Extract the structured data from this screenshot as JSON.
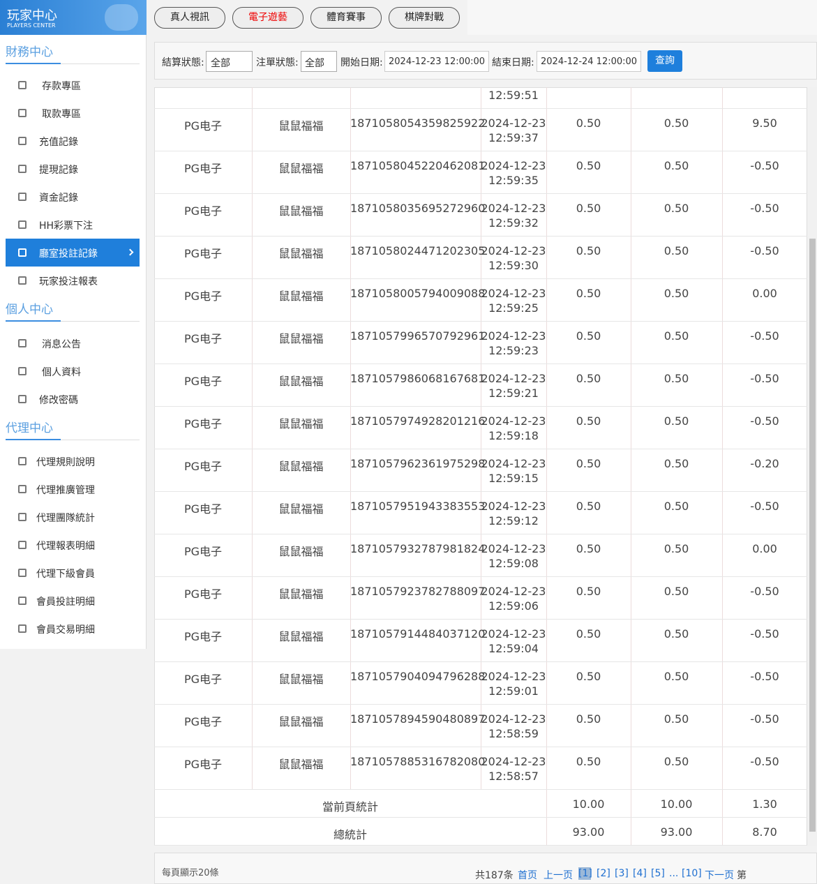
{
  "sidebar": {
    "logo_title": "玩家中心",
    "logo_subtitle": "PLAYERS CENTER",
    "sections": [
      {
        "title": "財務中心",
        "items": [
          "存款專區",
          "取款專區",
          "充值記錄",
          "提現記錄",
          "資金記錄",
          "HH彩票下注",
          "廳室投註記錄",
          "玩家投注報表"
        ]
      },
      {
        "title": "個人中心",
        "items": [
          "消息公告",
          "個人資料",
          "修改密碼"
        ]
      },
      {
        "title": "代理中心",
        "items": [
          "代理規則說明",
          "代理推廣管理",
          "代理團隊統計",
          "代理報表明細",
          "代理下級會員",
          "會員投註明細",
          "會員交易明細"
        ]
      }
    ]
  },
  "tabs": [
    "真人視訊",
    "電子遊藝",
    "體育賽事",
    "棋牌對戰"
  ],
  "filters": {
    "settle_label": "結算狀態:",
    "settle_value": "全部",
    "bet_label": "注單狀態:",
    "bet_value": "全部",
    "start_label": "開始日期:",
    "start_value": "2024-12-23 12:00:00",
    "end_label": "結束日期:",
    "end_value": "2024-12-24 12:00:00",
    "query_button": "查詢"
  },
  "table": {
    "partial_row_time": "12:59:51",
    "rows": [
      [
        "PG电子",
        "鼠鼠福福",
        "1871058054359825922",
        "2024-12-23",
        "12:59:37",
        "0.50",
        "0.50",
        "9.50"
      ],
      [
        "PG电子",
        "鼠鼠福福",
        "1871058045220462081",
        "2024-12-23",
        "12:59:35",
        "0.50",
        "0.50",
        "-0.50"
      ],
      [
        "PG电子",
        "鼠鼠福福",
        "1871058035695272960",
        "2024-12-23",
        "12:59:32",
        "0.50",
        "0.50",
        "-0.50"
      ],
      [
        "PG电子",
        "鼠鼠福福",
        "1871058024471202305",
        "2024-12-23",
        "12:59:30",
        "0.50",
        "0.50",
        "-0.50"
      ],
      [
        "PG电子",
        "鼠鼠福福",
        "1871058005794009088",
        "2024-12-23",
        "12:59:25",
        "0.50",
        "0.50",
        "0.00"
      ],
      [
        "PG电子",
        "鼠鼠福福",
        "1871057996570792961",
        "2024-12-23",
        "12:59:23",
        "0.50",
        "0.50",
        "-0.50"
      ],
      [
        "PG电子",
        "鼠鼠福福",
        "1871057986068167681",
        "2024-12-23",
        "12:59:21",
        "0.50",
        "0.50",
        "-0.50"
      ],
      [
        "PG电子",
        "鼠鼠福福",
        "1871057974928201216",
        "2024-12-23",
        "12:59:18",
        "0.50",
        "0.50",
        "-0.50"
      ],
      [
        "PG电子",
        "鼠鼠福福",
        "1871057962361975298",
        "2024-12-23",
        "12:59:15",
        "0.50",
        "0.50",
        "-0.20"
      ],
      [
        "PG电子",
        "鼠鼠福福",
        "1871057951943383553",
        "2024-12-23",
        "12:59:12",
        "0.50",
        "0.50",
        "-0.50"
      ],
      [
        "PG电子",
        "鼠鼠福福",
        "1871057932787981824",
        "2024-12-23",
        "12:59:08",
        "0.50",
        "0.50",
        "0.00"
      ],
      [
        "PG电子",
        "鼠鼠福福",
        "1871057923782788097",
        "2024-12-23",
        "12:59:06",
        "0.50",
        "0.50",
        "-0.50"
      ],
      [
        "PG电子",
        "鼠鼠福福",
        "1871057914484037120",
        "2024-12-23",
        "12:59:04",
        "0.50",
        "0.50",
        "-0.50"
      ],
      [
        "PG电子",
        "鼠鼠福福",
        "1871057904094796288",
        "2024-12-23",
        "12:59:01",
        "0.50",
        "0.50",
        "-0.50"
      ],
      [
        "PG电子",
        "鼠鼠福福",
        "1871057894590480897",
        "2024-12-23",
        "12:58:59",
        "0.50",
        "0.50",
        "-0.50"
      ],
      [
        "PG电子",
        "鼠鼠福福",
        "1871057885316782080",
        "2024-12-23",
        "12:58:57",
        "0.50",
        "0.50",
        "-0.50"
      ]
    ],
    "page_total": {
      "label": "當前頁統計",
      "values": [
        "10.00",
        "10.00",
        "1.30"
      ]
    },
    "grand_total": {
      "label": "總統計",
      "values": [
        "93.00",
        "93.00",
        "8.70"
      ]
    }
  },
  "footer": {
    "page_size": "每頁顯示20條",
    "total": "共187条",
    "first": "首页",
    "prev": "上一页",
    "pages": [
      "[1]",
      "[2]",
      "[3]",
      "[4]",
      "[5]"
    ],
    "ellipsis": "...",
    "last_page": "[10]",
    "next": "下一页",
    "goto": "第"
  }
}
